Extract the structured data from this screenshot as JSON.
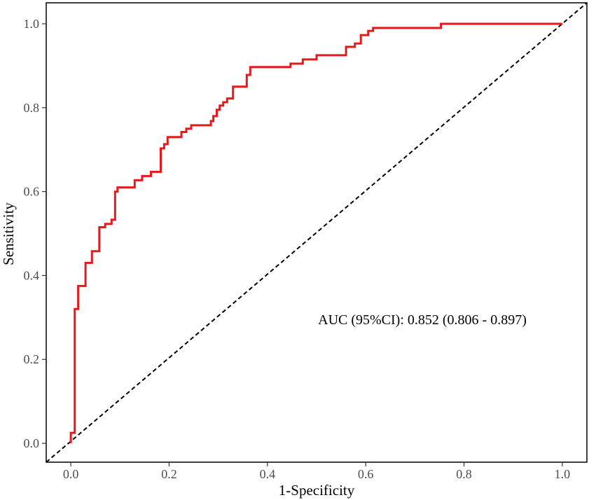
{
  "chart_data": {
    "type": "line",
    "xlabel": "1-Specificity",
    "ylabel": "Sensitivity",
    "xlim": [
      -0.05,
      1.05
    ],
    "ylim": [
      -0.045,
      1.05
    ],
    "x_ticks": [
      "0.0",
      "0.2",
      "0.4",
      "0.6",
      "0.8",
      "1.0"
    ],
    "y_ticks": [
      "0.0",
      "0.2",
      "0.4",
      "0.6",
      "0.8",
      "1.0"
    ],
    "grid": false,
    "annotation": "AUC (95%CI): 0.852 (0.806 - 0.897)",
    "roc_color": "#e41a1c",
    "reference_color": "#000000",
    "series": [
      {
        "type": "step",
        "points": [
          [
            0.0,
            0.0
          ],
          [
            0.0,
            0.025
          ],
          [
            0.008,
            0.025
          ],
          [
            0.008,
            0.32
          ],
          [
            0.015,
            0.32
          ],
          [
            0.015,
            0.375
          ],
          [
            0.03,
            0.375
          ],
          [
            0.03,
            0.43
          ],
          [
            0.043,
            0.43
          ],
          [
            0.043,
            0.458
          ],
          [
            0.058,
            0.458
          ],
          [
            0.058,
            0.515
          ],
          [
            0.07,
            0.515
          ],
          [
            0.07,
            0.523
          ],
          [
            0.083,
            0.523
          ],
          [
            0.083,
            0.533
          ],
          [
            0.09,
            0.533
          ],
          [
            0.09,
            0.6
          ],
          [
            0.095,
            0.6
          ],
          [
            0.095,
            0.61
          ],
          [
            0.13,
            0.61
          ],
          [
            0.13,
            0.627
          ],
          [
            0.145,
            0.627
          ],
          [
            0.145,
            0.637
          ],
          [
            0.163,
            0.637
          ],
          [
            0.163,
            0.647
          ],
          [
            0.183,
            0.647
          ],
          [
            0.183,
            0.703
          ],
          [
            0.19,
            0.703
          ],
          [
            0.19,
            0.713
          ],
          [
            0.197,
            0.713
          ],
          [
            0.197,
            0.73
          ],
          [
            0.225,
            0.73
          ],
          [
            0.225,
            0.742
          ],
          [
            0.235,
            0.742
          ],
          [
            0.235,
            0.75
          ],
          [
            0.245,
            0.75
          ],
          [
            0.245,
            0.758
          ],
          [
            0.285,
            0.758
          ],
          [
            0.285,
            0.768
          ],
          [
            0.29,
            0.768
          ],
          [
            0.29,
            0.78
          ],
          [
            0.297,
            0.78
          ],
          [
            0.297,
            0.795
          ],
          [
            0.303,
            0.795
          ],
          [
            0.303,
            0.805
          ],
          [
            0.31,
            0.805
          ],
          [
            0.31,
            0.813
          ],
          [
            0.318,
            0.813
          ],
          [
            0.318,
            0.822
          ],
          [
            0.33,
            0.822
          ],
          [
            0.33,
            0.85
          ],
          [
            0.358,
            0.85
          ],
          [
            0.358,
            0.878
          ],
          [
            0.365,
            0.878
          ],
          [
            0.365,
            0.897
          ],
          [
            0.447,
            0.897
          ],
          [
            0.447,
            0.905
          ],
          [
            0.472,
            0.905
          ],
          [
            0.472,
            0.915
          ],
          [
            0.5,
            0.915
          ],
          [
            0.5,
            0.925
          ],
          [
            0.56,
            0.925
          ],
          [
            0.56,
            0.945
          ],
          [
            0.578,
            0.945
          ],
          [
            0.578,
            0.953
          ],
          [
            0.59,
            0.953
          ],
          [
            0.59,
            0.973
          ],
          [
            0.605,
            0.973
          ],
          [
            0.605,
            0.983
          ],
          [
            0.615,
            0.983
          ],
          [
            0.615,
            0.99
          ],
          [
            0.753,
            0.99
          ],
          [
            0.753,
            1.0
          ],
          [
            1.0,
            1.0
          ]
        ]
      },
      {
        "type": "reference",
        "points": [
          [
            -0.05,
            -0.045
          ],
          [
            1.05,
            1.05
          ]
        ]
      }
    ]
  }
}
